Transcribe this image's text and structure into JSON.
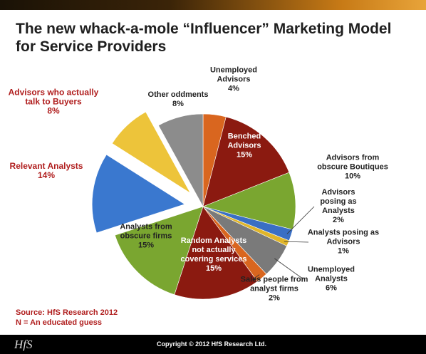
{
  "header": {
    "title": "The new whack-a-mole “Influencer” Marketing Model for Service Providers"
  },
  "chart_data": {
    "type": "pie",
    "categories": [
      "Unemployed Advisors",
      "Benched Advisors",
      "Advisors from obscure Boutiques",
      "Advisors posing as Analysts",
      "Analysts posing as Advisors",
      "Unemployed Analysts",
      "Sales people from analyst firms",
      "Random Analysts not actually covering services",
      "Analysts from obscure firms",
      "Relevant Analysts",
      "Advisors who actually talk to Buyers",
      "Other oddments"
    ],
    "values": [
      4,
      15,
      10,
      2,
      1,
      6,
      2,
      15,
      15,
      14,
      8,
      8
    ],
    "value_labels": [
      "4%",
      "15%",
      "10%",
      "2%",
      "1%",
      "6%",
      "2%",
      "15%",
      "15%",
      "14%",
      "8%",
      "8%"
    ],
    "colors": [
      "#d9661f",
      "#8b1a10",
      "#7aa630",
      "#3a6fc4",
      "#e0b52a",
      "#7a7a7a",
      "#d9661f",
      "#8b1a10",
      "#7aa630",
      "#3a78cf",
      "#edc43a",
      "#8c8c8c"
    ],
    "exploded": [
      false,
      false,
      false,
      false,
      false,
      false,
      false,
      false,
      false,
      true,
      true,
      false
    ]
  },
  "source": [
    "Source: HfS Research 2012",
    "N = An educated guess"
  ],
  "footer": {
    "logo": "HfS",
    "copyright": "Copyright © 2012 HfS Research Ltd."
  }
}
